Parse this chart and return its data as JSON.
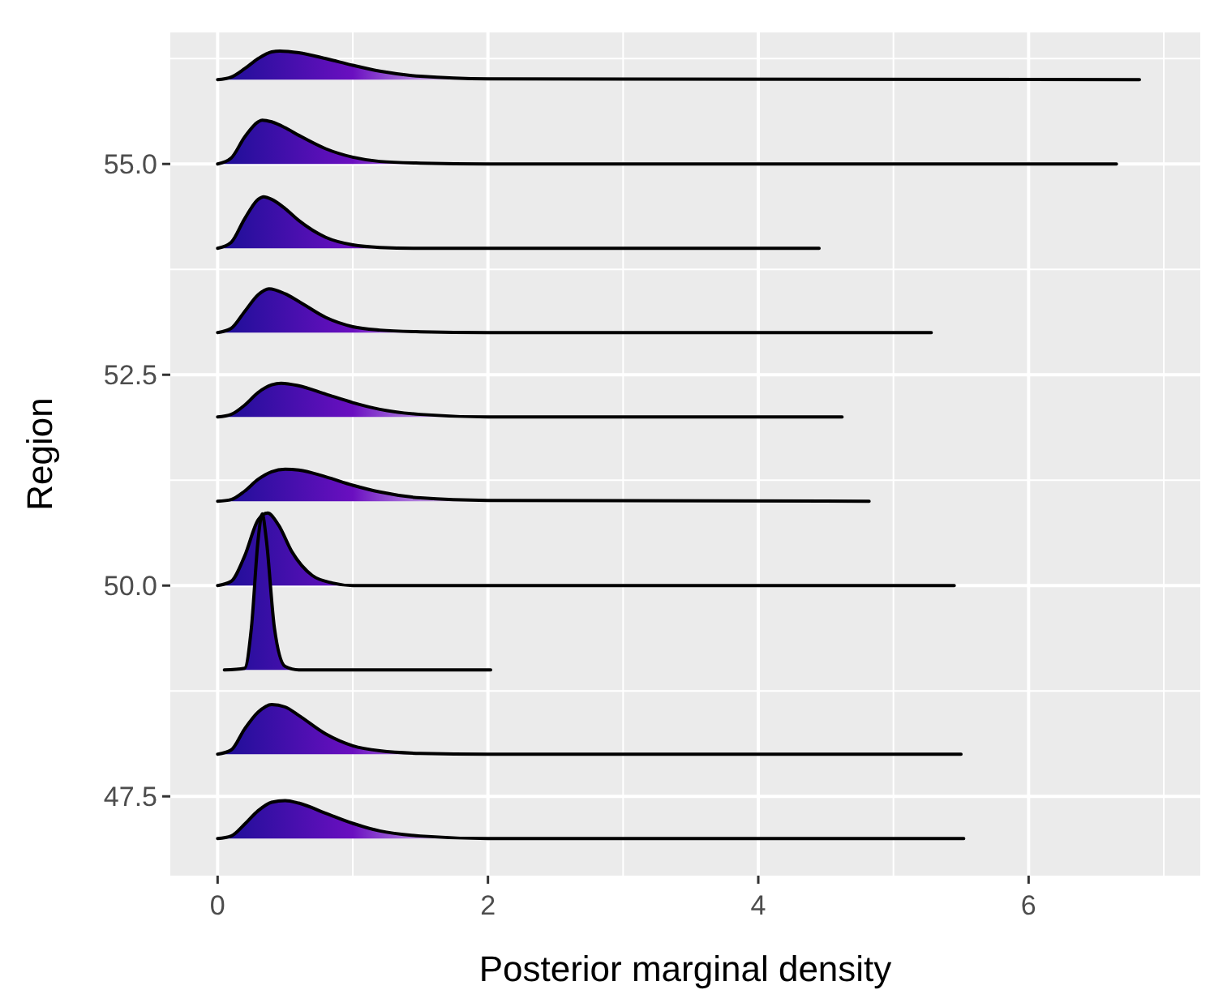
{
  "chart_data": {
    "type": "line",
    "xlabel": "Posterior marginal density",
    "ylabel": "Region",
    "xlim": [
      -0.35,
      7.27
    ],
    "ylim": [
      46.56,
      56.56
    ],
    "xticks": [
      0,
      {
        "value": 1,
        "label": null
      },
      2,
      {
        "value": 3,
        "label": null
      },
      4,
      {
        "value": 5,
        "label": null
      },
      6,
      {
        "value": 7,
        "label": null
      }
    ],
    "yticks": [
      {
        "value": 47.5,
        "label": "47.5"
      },
      {
        "value": 48.75,
        "label": null
      },
      {
        "value": 50,
        "label": "50.0"
      },
      {
        "value": 51.25,
        "label": null
      },
      {
        "value": 52.5,
        "label": "52.5"
      },
      {
        "value": 53.75,
        "label": null
      },
      {
        "value": 55,
        "label": "55.0"
      },
      {
        "value": 56.25,
        "label": null
      }
    ],
    "grid": true,
    "marker": "none",
    "series": [
      {
        "color": "#000000",
        "x": [
          0,
          0.1,
          0.2,
          0.3,
          0.4,
          0.46,
          0.6,
          0.8,
          1.0,
          1.2,
          1.5,
          2.0,
          6.82
        ],
        "values": [
          56,
          56.03,
          56.13,
          56.25,
          56.33,
          56.34,
          56.32,
          56.25,
          56.17,
          56.1,
          56.04,
          56.01,
          56
        ]
      },
      {
        "color": "#000000",
        "x": [
          0,
          0.1,
          0.2,
          0.3,
          0.33,
          0.4,
          0.5,
          0.6,
          0.8,
          1.0,
          1.2,
          1.5,
          2.0,
          6.65
        ],
        "values": [
          55,
          55.07,
          55.32,
          55.5,
          55.52,
          55.5,
          55.43,
          55.34,
          55.18,
          55.08,
          55.03,
          55.01,
          55,
          55
        ]
      },
      {
        "color": "#000000",
        "x": [
          0,
          0.1,
          0.2,
          0.3,
          0.34,
          0.4,
          0.5,
          0.6,
          0.8,
          1.0,
          1.2,
          1.5,
          4.45
        ],
        "values": [
          54,
          54.07,
          54.35,
          54.58,
          54.61,
          54.58,
          54.47,
          54.33,
          54.13,
          54.04,
          54.01,
          54,
          54
        ]
      },
      {
        "color": "#000000",
        "x": [
          0,
          0.1,
          0.2,
          0.3,
          0.38,
          0.5,
          0.6,
          0.8,
          1.0,
          1.2,
          1.5,
          2.0,
          5.28
        ],
        "values": [
          53,
          53.05,
          53.25,
          53.45,
          53.52,
          53.46,
          53.37,
          53.18,
          53.07,
          53.03,
          53.01,
          53,
          53
        ]
      },
      {
        "color": "#000000",
        "x": [
          0,
          0.1,
          0.2,
          0.3,
          0.4,
          0.47,
          0.6,
          0.8,
          1.0,
          1.2,
          1.5,
          2.0,
          4.62
        ],
        "values": [
          52,
          52.03,
          52.14,
          52.29,
          52.38,
          52.4,
          52.37,
          52.27,
          52.17,
          52.09,
          52.03,
          52,
          52
        ]
      },
      {
        "color": "#000000",
        "x": [
          0,
          0.1,
          0.2,
          0.3,
          0.4,
          0.5,
          0.6,
          0.8,
          1.0,
          1.2,
          1.5,
          2.0,
          4.82
        ],
        "values": [
          51,
          51.02,
          51.12,
          51.26,
          51.35,
          51.38,
          51.37,
          51.29,
          51.19,
          51.11,
          51.04,
          51.01,
          51
        ]
      },
      {
        "color": "#000000",
        "x": [
          0,
          0.1,
          0.2,
          0.3,
          0.37,
          0.45,
          0.55,
          0.7,
          0.85,
          1.0,
          5.45
        ],
        "values": [
          50,
          50.05,
          50.35,
          50.78,
          50.86,
          50.72,
          50.4,
          50.12,
          50.03,
          50,
          50
        ]
      },
      {
        "color": "#000000",
        "x": [
          0.05,
          0.2,
          0.25,
          0.3,
          0.33,
          0.36,
          0.42,
          0.5,
          0.6,
          2.02
        ],
        "values": [
          49,
          49.02,
          49.5,
          50.55,
          50.85,
          50.55,
          49.5,
          49.04,
          49,
          49
        ]
      },
      {
        "color": "#000000",
        "x": [
          0,
          0.1,
          0.2,
          0.3,
          0.4,
          0.5,
          0.6,
          0.8,
          1.0,
          1.2,
          1.5,
          2.0,
          5.5
        ],
        "values": [
          48,
          48.05,
          48.3,
          48.5,
          48.59,
          48.56,
          48.46,
          48.24,
          48.1,
          48.04,
          48.01,
          48,
          48
        ]
      },
      {
        "color": "#000000",
        "x": [
          0,
          0.1,
          0.2,
          0.3,
          0.4,
          0.5,
          0.6,
          0.8,
          1.0,
          1.2,
          1.5,
          2.0,
          5.52
        ],
        "values": [
          47,
          47.03,
          47.17,
          47.33,
          47.43,
          47.45,
          47.42,
          47.3,
          47.18,
          47.09,
          47.03,
          47,
          47
        ]
      }
    ]
  }
}
